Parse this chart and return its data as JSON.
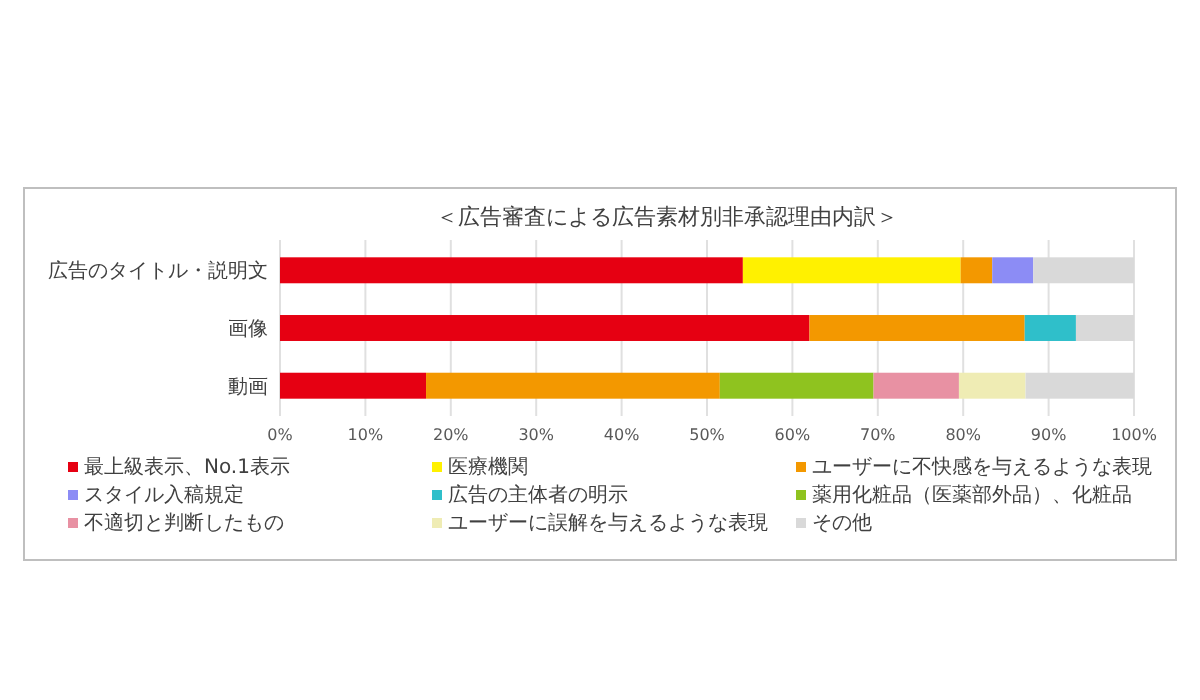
{
  "chart_data": {
    "type": "bar",
    "orientation": "horizontal",
    "stacked": true,
    "title": "＜広告審査による広告素材別非承認理由内訳＞",
    "categories": [
      "広告のタイトル・説明文",
      "画像",
      "動画"
    ],
    "series": [
      {
        "name": "最上級表示、No.1表示",
        "color": "#e60012",
        "values": [
          54.2,
          62,
          17.1
        ]
      },
      {
        "name": "医療機関",
        "color": "#fff100",
        "values": [
          25.5,
          null,
          null
        ]
      },
      {
        "name": "ユーザーに不快感を与えるような表現",
        "color": "#f39800",
        "values": [
          3.7,
          25.2,
          34.4
        ]
      },
      {
        "name": "スタイル入稿規定",
        "color": "#8c8cf5",
        "values": [
          4.8,
          null,
          null
        ]
      },
      {
        "name": "広告の主体者の明示",
        "color": "#2fbfca",
        "values": [
          null,
          6,
          null
        ]
      },
      {
        "name": "薬用化粧品（医薬部外品）、化粧品",
        "color": "#8fc31f",
        "values": [
          null,
          null,
          18
        ]
      },
      {
        "name": "不適切と判断したもの",
        "color": "#e891a3",
        "values": [
          null,
          null,
          10
        ]
      },
      {
        "name": "ユーザーに誤解を与えるような表現",
        "color": "#efecb4",
        "values": [
          null,
          null,
          7.8
        ]
      },
      {
        "name": "その他",
        "color": "#d9d9d9",
        "values": [
          11.8,
          6.8,
          12.7
        ]
      }
    ],
    "xlim": [
      0,
      100
    ],
    "xticks": [
      {
        "value": 0,
        "label": "0%"
      },
      {
        "value": 10,
        "label": "10%"
      },
      {
        "value": 20,
        "label": "20%"
      },
      {
        "value": 30,
        "label": "30%"
      },
      {
        "value": 40,
        "label": "40%"
      },
      {
        "value": 50,
        "label": "50%"
      },
      {
        "value": 60,
        "label": "60%"
      },
      {
        "value": 70,
        "label": "70%"
      },
      {
        "value": 80,
        "label": "80%"
      },
      {
        "value": 90,
        "label": "90%"
      },
      {
        "value": 100,
        "label": "100%"
      }
    ],
    "grid": "x",
    "legend": "bottom"
  }
}
